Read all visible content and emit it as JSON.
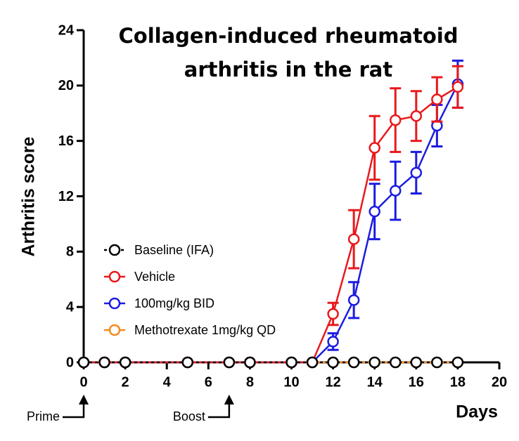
{
  "chart_data": {
    "type": "line",
    "title": [
      "Collagen-induced rheumatoid",
      "arthritis in the rat"
    ],
    "x_label": "Days",
    "y_label": "Arthritis score",
    "x": [
      0,
      1,
      2,
      5,
      7,
      8,
      10,
      11,
      12,
      13,
      14,
      15,
      16,
      17,
      18
    ],
    "series": [
      {
        "name": "Baseline (IFA)",
        "color": "#000000",
        "linestyle": "dashed",
        "values": [
          0,
          0,
          0,
          0,
          0,
          0,
          0,
          0,
          0,
          0,
          0,
          0,
          0,
          0,
          0
        ],
        "errors": [
          0,
          0,
          0,
          0,
          0,
          0,
          0,
          0,
          0,
          0,
          0,
          0,
          0,
          0,
          0
        ]
      },
      {
        "name": "Vehicle",
        "color": "#e8191c",
        "linestyle": "solid",
        "values": [
          0,
          0,
          0,
          0,
          0,
          0,
          0,
          0,
          3.5,
          8.9,
          15.5,
          17.5,
          17.8,
          19.0,
          19.9
        ],
        "errors": [
          0,
          0,
          0,
          0,
          0,
          0,
          0,
          0,
          0.8,
          2.1,
          2.3,
          2.3,
          1.8,
          1.6,
          1.5
        ]
      },
      {
        "name": "100mg/kg BID",
        "color": "#1c1ce0",
        "linestyle": "solid",
        "values": [
          0,
          0,
          0,
          0,
          0,
          0,
          0,
          0,
          1.5,
          4.5,
          10.9,
          12.4,
          13.7,
          17.1,
          20.1
        ],
        "errors": [
          0,
          0,
          0,
          0,
          0,
          0,
          0,
          0,
          0.6,
          1.3,
          2.0,
          2.1,
          1.5,
          1.5,
          1.7
        ]
      },
      {
        "name": "Methotrexate 1mg/kg QD",
        "color": "#f58a1f",
        "linestyle": "solid",
        "values": [
          0,
          0,
          0,
          0,
          0,
          0,
          0,
          0,
          0,
          0,
          0,
          0,
          0,
          0,
          0
        ],
        "errors": [
          0,
          0,
          0,
          0,
          0,
          0,
          0,
          0,
          0,
          0,
          0,
          0,
          0,
          0,
          0
        ]
      }
    ],
    "xlim": [
      0,
      20
    ],
    "xticks": [
      0,
      2,
      4,
      6,
      8,
      10,
      12,
      14,
      16,
      18,
      20
    ],
    "ylim": [
      0,
      24
    ],
    "yticks": [
      0,
      4,
      8,
      12,
      16,
      20,
      24
    ],
    "grid": false,
    "legend": "center-left",
    "annotations": [
      {
        "text": "Prime",
        "x": 0
      },
      {
        "text": "Boost",
        "x": 7
      }
    ]
  }
}
